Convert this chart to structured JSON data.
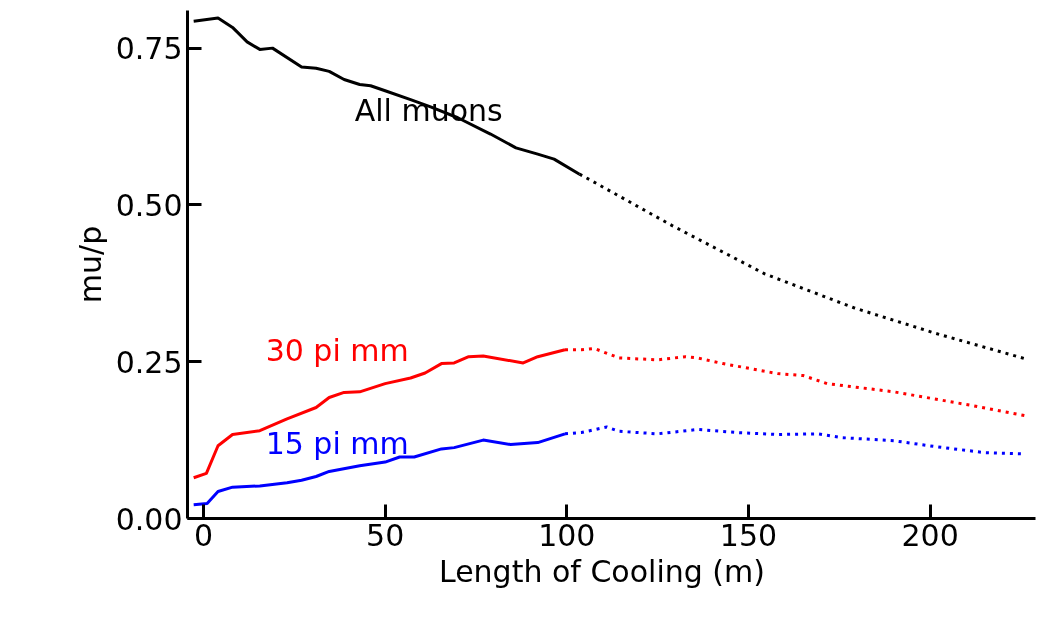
{
  "chart_data": {
    "type": "line",
    "xlabel": "Length of Cooling   (m)",
    "ylabel": "mu/p",
    "xlim": [
      -4.4,
      229
    ],
    "ylim": [
      0,
      0.81
    ],
    "xticks": [
      0,
      50,
      100,
      150,
      200
    ],
    "yticks": [
      {
        "value": 0,
        "label": "0.00"
      },
      {
        "value": 0.25,
        "label": "0.25"
      },
      {
        "value": 0.5,
        "label": "0.50"
      },
      {
        "value": 0.75,
        "label": "0.75"
      }
    ],
    "grid": false,
    "marker": "none",
    "series": [
      {
        "name": "All muons",
        "color": "#000000",
        "line_style": "solid",
        "x": [
          -2.7,
          4,
          8,
          12,
          15.5,
          19,
          27,
          31,
          34.6,
          38.7,
          43,
          46,
          50,
          57,
          62.7,
          70,
          79,
          86,
          92,
          96.5,
          103.5
        ],
        "values": [
          0.793,
          0.798,
          0.783,
          0.76,
          0.748,
          0.75,
          0.72,
          0.718,
          0.713,
          0.7,
          0.692,
          0.69,
          0.682,
          0.668,
          0.656,
          0.639,
          0.613,
          0.591,
          0.581,
          0.573,
          0.549
        ]
      },
      {
        "color": "#000000",
        "line_style": "dotted",
        "x": [
          103.5,
          107,
          129,
          154.5,
          179,
          201.6,
          226
        ],
        "values": [
          0.549,
          0.538,
          0.467,
          0.39,
          0.336,
          0.295,
          0.255
        ]
      },
      {
        "name": "30 pi mm",
        "color": "#ff0000",
        "line_style": "solid",
        "x": [
          -2.7,
          0.8,
          4,
          8,
          15.5,
          23,
          31,
          34.6,
          38.7,
          43,
          50,
          57,
          61,
          65.5,
          69,
          73,
          77,
          88,
          92,
          99.5
        ],
        "values": [
          0.065,
          0.072,
          0.116,
          0.134,
          0.14,
          0.159,
          0.177,
          0.193,
          0.201,
          0.202,
          0.215,
          0.224,
          0.232,
          0.247,
          0.248,
          0.258,
          0.259,
          0.248,
          0.258,
          0.269
        ]
      },
      {
        "color": "#ff0000",
        "line_style": "dotted",
        "x": [
          99.5,
          104,
          107.6,
          114.4,
          125,
          132.7,
          136,
          143,
          158,
          165,
          171.7,
          190,
          211.7,
          226
        ],
        "values": [
          0.269,
          0.269,
          0.271,
          0.256,
          0.253,
          0.258,
          0.256,
          0.247,
          0.231,
          0.228,
          0.215,
          0.202,
          0.18,
          0.164
        ]
      },
      {
        "name": "15 pi mm",
        "color": "#0000ff",
        "line_style": "solid",
        "x": [
          -2.7,
          1,
          4,
          8,
          15.5,
          23,
          27,
          31,
          34.6,
          43,
          50,
          54,
          58,
          65.5,
          69,
          77,
          84.5,
          92,
          99.5
        ],
        "values": [
          0.022,
          0.024,
          0.043,
          0.05,
          0.052,
          0.057,
          0.061,
          0.067,
          0.075,
          0.084,
          0.09,
          0.098,
          0.098,
          0.111,
          0.113,
          0.125,
          0.118,
          0.121,
          0.135
        ]
      },
      {
        "color": "#0000ff",
        "line_style": "dotted",
        "x": [
          99.5,
          104,
          111,
          114.4,
          125,
          136,
          147,
          158,
          169,
          175.5,
          190,
          201,
          215,
          226
        ],
        "values": [
          0.135,
          0.137,
          0.146,
          0.139,
          0.135,
          0.142,
          0.137,
          0.134,
          0.135,
          0.129,
          0.124,
          0.115,
          0.105,
          0.103
        ]
      }
    ]
  }
}
